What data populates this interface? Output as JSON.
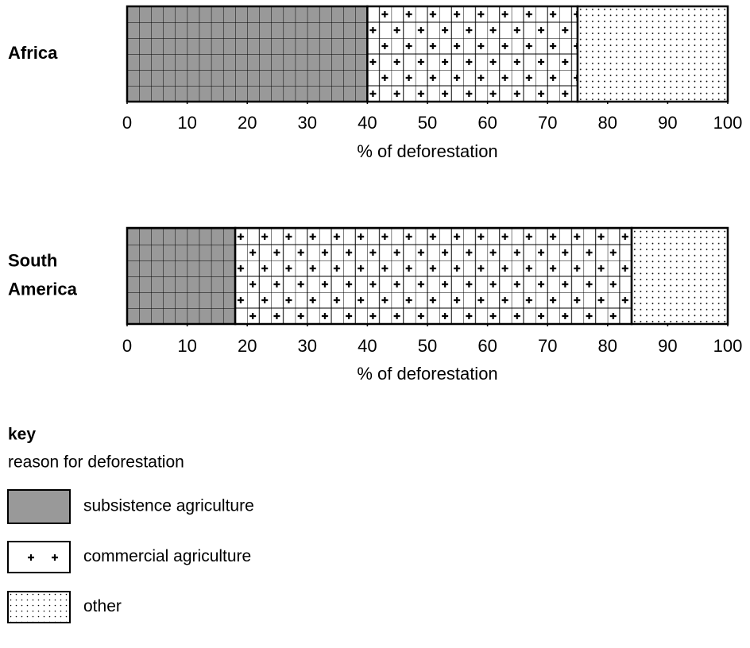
{
  "chart_data": {
    "type": "stacked-barh",
    "categories": [
      "Africa",
      "South America"
    ],
    "xlabel": "% of deforestation",
    "xlim": [
      0,
      100
    ],
    "xticks": [
      0,
      10,
      20,
      30,
      40,
      50,
      60,
      70,
      80,
      90,
      100
    ],
    "legend_title": "key",
    "legend_subtitle": "reason for deforestation",
    "series": [
      {
        "name": "subsistence agriculture",
        "color": "#999999",
        "pattern": "grid",
        "values": [
          40,
          18
        ]
      },
      {
        "name": "commercial agriculture",
        "color": "#ffffff",
        "pattern": "plus",
        "values": [
          35,
          66
        ]
      },
      {
        "name": "other",
        "color": "#ffffff",
        "pattern": "dots",
        "values": [
          25,
          16
        ]
      }
    ]
  }
}
